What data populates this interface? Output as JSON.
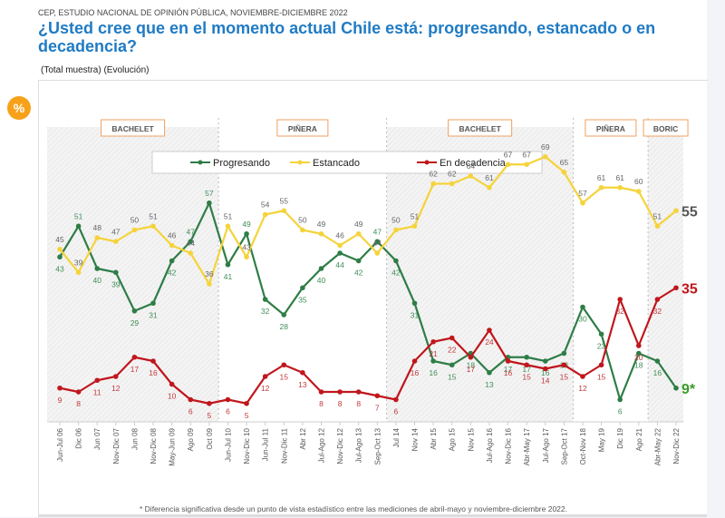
{
  "header": {
    "source": "CEP, ESTUDIO NACIONAL DE OPINIÓN PÚBLICA, NOVIEMBRE-DICIEMBRE 2022",
    "title": "¿Usted cree que en el momento actual Chile está: progresando, estancado o en decadencia?",
    "subtitle": "(Total muestra) (Evolución)",
    "badge": "%"
  },
  "footnote": "* Diferencia significativa desde un punto de vista estadístico entre las mediciones de abril-mayo y noviembre-diciembre 2022.",
  "colors": {
    "progresando": "#2e7d46",
    "estancado": "#f5d33b",
    "decadencia": "#c0161c",
    "accent": "#f7a11a",
    "title": "#1f7bc4",
    "period_border": "#f0a060"
  },
  "chart_data": {
    "type": "line",
    "title": "¿Usted cree que en el momento actual Chile está: progresando, estancado o en decadencia?",
    "xlabel": "",
    "ylabel": "%",
    "ylim": [
      0,
      75
    ],
    "grid": false,
    "legend": "top-center",
    "categories": [
      "Jun-Jul 06",
      "Dic 06",
      "Jun 07",
      "Nov-Dic 07",
      "Jun 08",
      "Nov-Dic 08",
      "May-Jun 09",
      "Ago 09",
      "Oct 09",
      "Jun-Jul 10",
      "Nov-Dic 10",
      "Jun-Jul 11",
      "Nov-Dic 11",
      "Abr 12",
      "Jul-Ago 12",
      "Nov-Dic 12",
      "Jul-Ago 13",
      "Sep-Oct 13",
      "Jul 14",
      "Nov 14",
      "Abr 15",
      "Ago 15",
      "Nov 15",
      "Jul-Ago 16",
      "Nov-Dic 16",
      "Abr-May 17",
      "Jul-Ago 17",
      "Sep-Oct 17",
      "Oct-Nov 18",
      "May 19",
      "Dic 19",
      "Ago 21",
      "Abr-May 22",
      "Nov-Dic 22"
    ],
    "series": [
      {
        "name": "Progresando",
        "key": "progresando",
        "values": [
          43,
          51,
          40,
          39,
          29,
          31,
          42,
          47,
          57,
          41,
          49,
          32,
          28,
          35,
          40,
          44,
          42,
          47,
          42,
          31,
          16,
          15,
          18,
          13,
          17,
          17,
          16,
          18,
          30,
          23,
          6,
          18,
          16,
          9
        ],
        "last_label": "9*"
      },
      {
        "name": "Estancado",
        "key": "estancado",
        "values": [
          45,
          39,
          48,
          47,
          50,
          51,
          46,
          44,
          36,
          51,
          43,
          54,
          55,
          50,
          49,
          46,
          49,
          44,
          50,
          51,
          62,
          62,
          64,
          61,
          67,
          67,
          69,
          65,
          57,
          61,
          61,
          60,
          51,
          55
        ],
        "last_label": "55"
      },
      {
        "name": "En decadencia",
        "key": "decadencia",
        "values": [
          9,
          8,
          11,
          12,
          17,
          16,
          10,
          6,
          5,
          6,
          5,
          12,
          15,
          13,
          8,
          8,
          8,
          7,
          6,
          16,
          21,
          22,
          17,
          24,
          16,
          15,
          14,
          15,
          12,
          15,
          32,
          20,
          32,
          35
        ],
        "last_label": "35"
      }
    ],
    "periods": [
      {
        "label": "BACHELET",
        "from": 0,
        "to": 8,
        "shaded": true
      },
      {
        "label": "PIÑERA",
        "from": 9,
        "to": 17,
        "shaded": false
      },
      {
        "label": "BACHELET",
        "from": 18,
        "to": 27,
        "shaded": true
      },
      {
        "label": "PIÑERA",
        "from": 28,
        "to": 31,
        "shaded": false
      },
      {
        "label": "BORIC",
        "from": 32,
        "to": 33,
        "shaded": true
      }
    ],
    "annotations": [
      "* Diferencia significativa"
    ]
  }
}
